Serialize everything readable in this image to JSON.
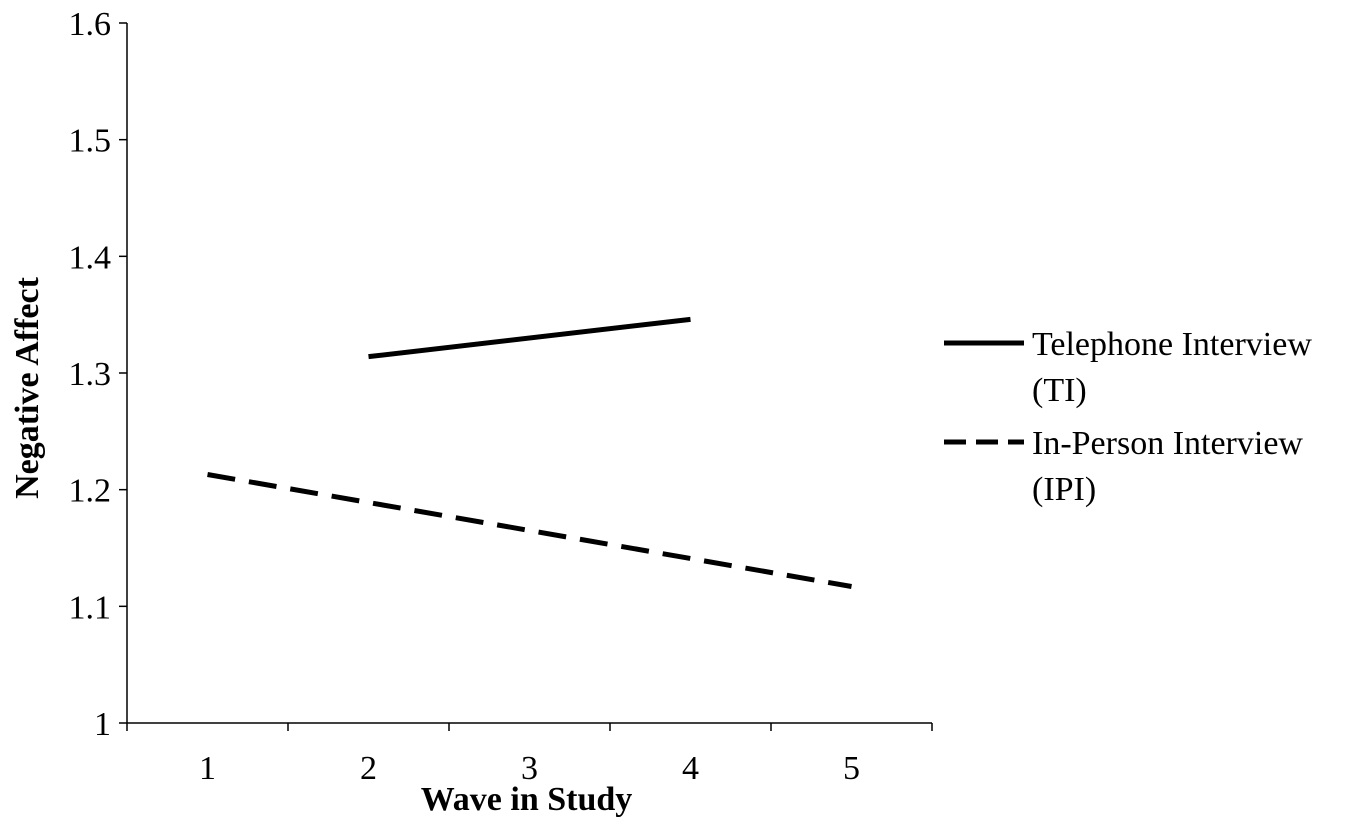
{
  "chart_data": {
    "type": "line",
    "title": "",
    "xlabel": "Wave in Study",
    "ylabel": "Negative Affect",
    "x_ticks": [
      "1",
      "2",
      "3",
      "4",
      "5"
    ],
    "y_ticks": [
      "1",
      "1.1",
      "1.2",
      "1.3",
      "1.4",
      "1.5",
      "1.6"
    ],
    "xlim": [
      0.5,
      5.5
    ],
    "ylim": [
      1.0,
      1.6
    ],
    "grid": false,
    "legend_position": "right",
    "series": [
      {
        "name_lines": [
          "Telephone Interview",
          "(TI)"
        ],
        "style": "solid",
        "color": "#000000",
        "points": [
          {
            "x": 2,
            "y": 1.314
          },
          {
            "x": 4,
            "y": 1.346
          }
        ]
      },
      {
        "name_lines": [
          "In-Person Interview",
          "(IPI)"
        ],
        "style": "dashed",
        "color": "#000000",
        "points": [
          {
            "x": 1,
            "y": 1.213
          },
          {
            "x": 5,
            "y": 1.117
          }
        ]
      }
    ]
  }
}
